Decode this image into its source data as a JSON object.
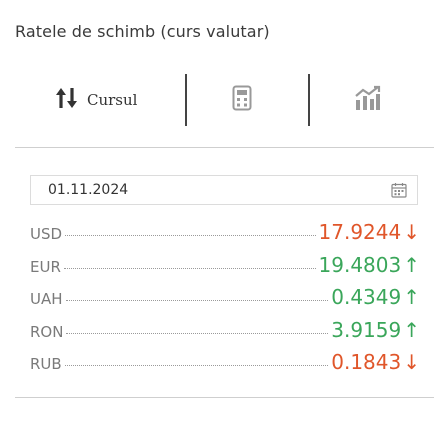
{
  "title": "Ratele de schimb (curs valutar)",
  "tabs": {
    "rates_label": "Cursul"
  },
  "date": {
    "value": "01.11.2024"
  },
  "rates": [
    {
      "code": "USD",
      "value": "17.9244",
      "trend": "down",
      "arrow": "↓"
    },
    {
      "code": "EUR",
      "value": "19.4803",
      "trend": "up",
      "arrow": "↑"
    },
    {
      "code": "UAH",
      "value": "0.4349",
      "trend": "up",
      "arrow": "↑"
    },
    {
      "code": "RON",
      "value": "3.9159",
      "trend": "up",
      "arrow": "↑"
    },
    {
      "code": "RUB",
      "value": "0.1843",
      "trend": "down",
      "arrow": "↓"
    }
  ],
  "colors": {
    "down": "#e0562a",
    "up": "#3aa65a"
  },
  "icons": {
    "rates_tab": "up-down-arrows-icon",
    "calculator_tab": "calculator-icon",
    "chart_tab": "chart-icon",
    "date": "calendar-icon"
  }
}
